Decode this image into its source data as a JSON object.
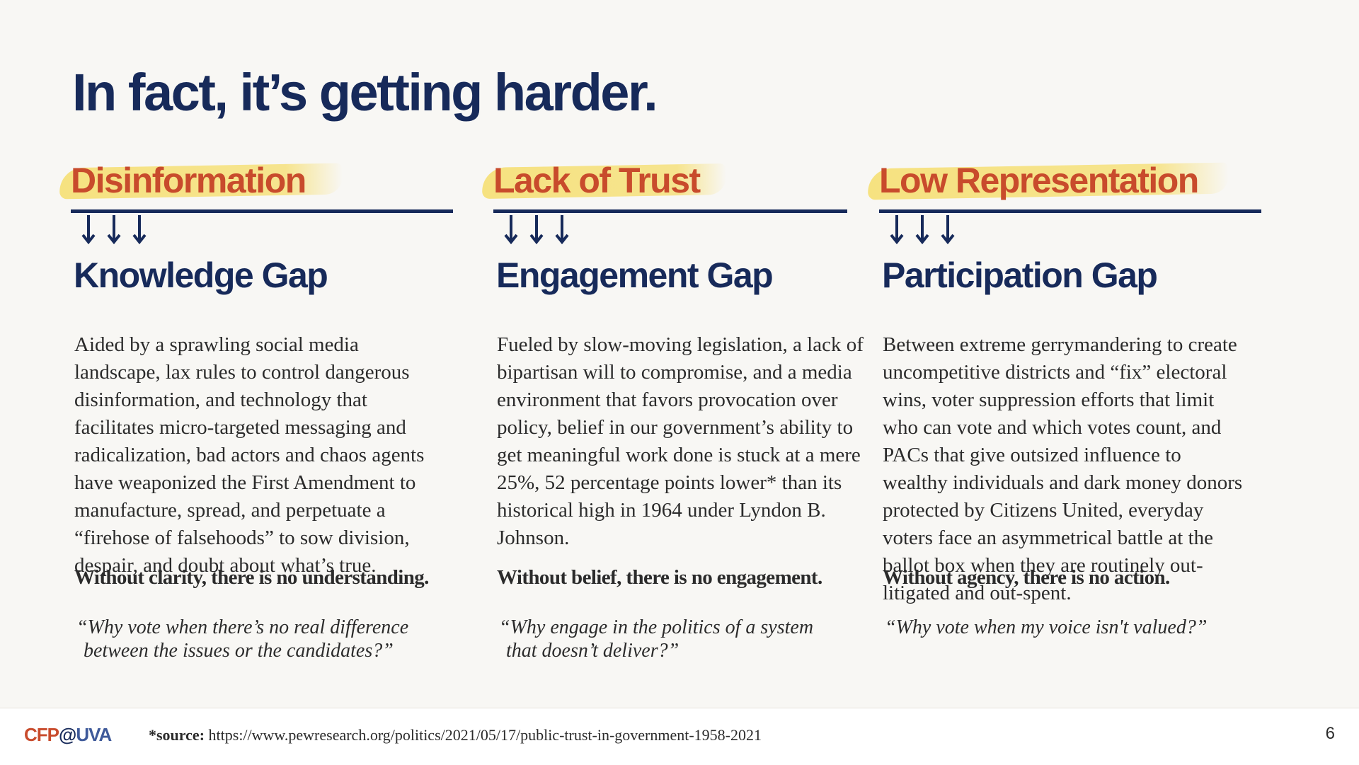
{
  "slide": {
    "title": "In fact, it’s getting harder.",
    "page_number": "6"
  },
  "colors": {
    "navy": "#172a5a",
    "accent": "#c84b2c",
    "highlight": "#f6de6c"
  },
  "columns": [
    {
      "category": "Disinformation",
      "gap": "Knowledge Gap",
      "body": "Aided by a sprawling social media landscape, lax rules to control dangerous disinformation, and technology that facilitates micro-targeted messaging and radicalization, bad actors and chaos agents have weaponized the First Amendment to manufacture, spread, and perpetuate a “firehose of falsehoods” to sow division, despair, and doubt about what’s true.",
      "conclusion": "Without clarity, there is no understanding.",
      "quote_lines": [
        "“Why vote when there’s no real difference",
        "between the issues or the candidates?”"
      ]
    },
    {
      "category": "Lack of Trust",
      "gap": "Engagement Gap",
      "body": "Fueled by slow-moving legislation, a lack of bipartisan will to compromise, and a media environment that favors provocation over policy, belief in our government’s ability to get meaningful work done is stuck at a mere 25%, 52 percentage points lower* than its historical high in 1964 under Lyndon B. Johnson.",
      "conclusion": "Without belief, there is no engagement.",
      "quote_lines": [
        "“Why engage in the politics of a system",
        "that doesn’t deliver?”"
      ]
    },
    {
      "category": "Low Representation",
      "gap": "Participation Gap",
      "body": "Between extreme gerrymandering to create uncompetitive districts and “fix” electoral wins, voter suppression efforts that limit who can vote and which votes count, and PACs that give outsized influence to wealthy individuals and dark money donors protected by Citizens United, everyday voters face an asymmetrical battle at the ballot box when they are routinely out-litigated and out-spent.",
      "conclusion": "Without agency, there is no action.",
      "quote_lines": [
        "“Why vote when my voice isn't valued?”",
        ""
      ]
    }
  ],
  "footer": {
    "logo": {
      "part1": "CFP",
      "part2": "@",
      "part3": "UVA"
    },
    "source_label": "*source:",
    "source_url": "https://www.pewresearch.org/politics/2021/05/17/public-trust-in-government-1958-2021"
  },
  "icons": {
    "arrow": "arrow-down-icon"
  }
}
